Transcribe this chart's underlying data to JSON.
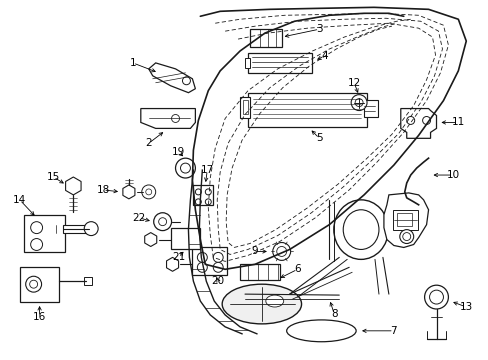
{
  "bg_color": "#ffffff",
  "line_color": "#1a1a1a",
  "label_color": "#000000",
  "figsize": [
    4.89,
    3.6
  ],
  "dpi": 100,
  "font_size": 7.5
}
